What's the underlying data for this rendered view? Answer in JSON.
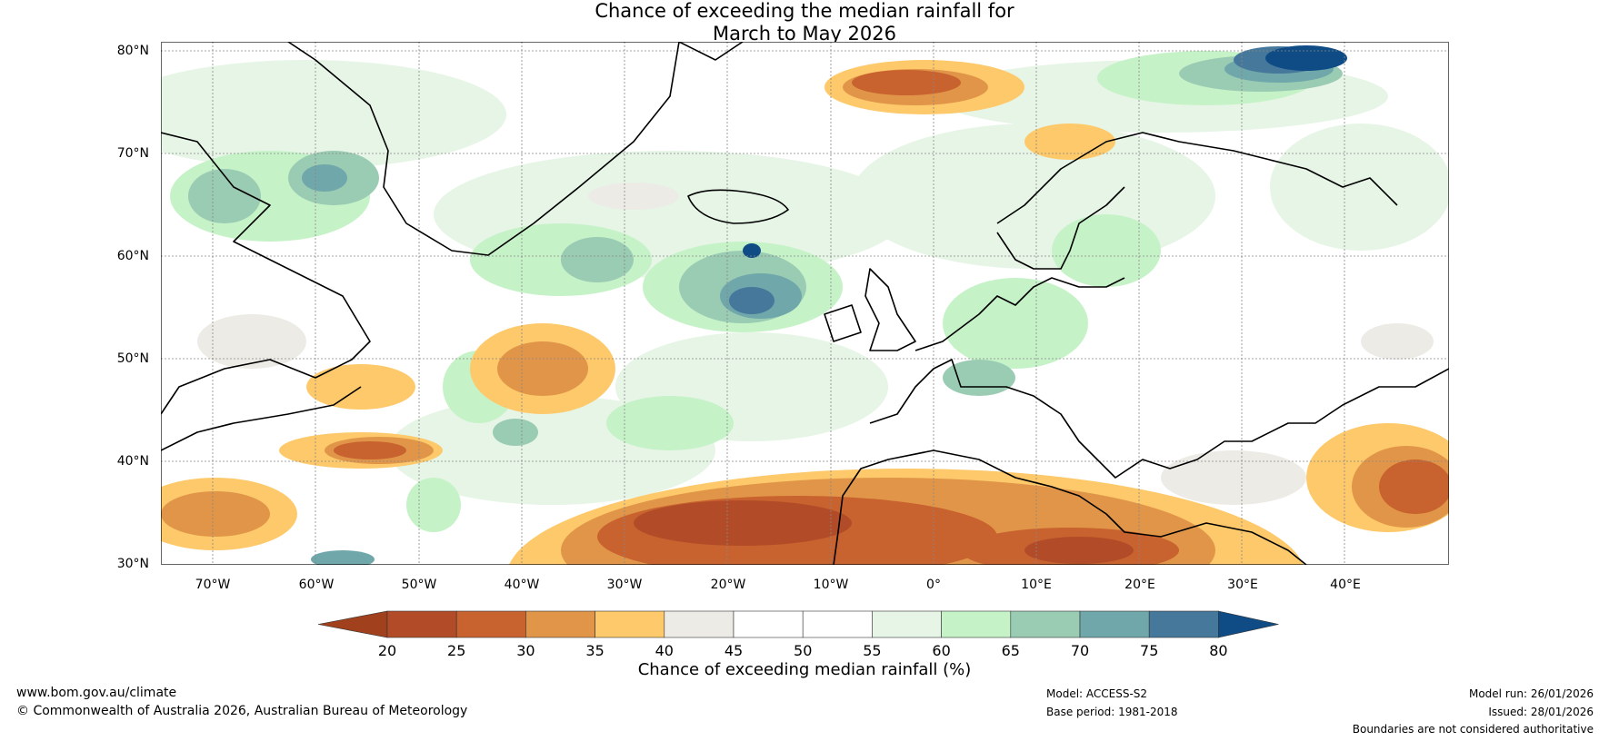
{
  "title_line1": "Chance of exceeding the median rainfall for",
  "title_line2": "March to May 2026",
  "lat_labels": [
    "80°N",
    "70°N",
    "60°N",
    "50°N",
    "40°N",
    "30°N"
  ],
  "lon_labels": [
    "70°W",
    "60°W",
    "50°W",
    "40°W",
    "30°W",
    "20°W",
    "10°W",
    "0°",
    "10°E",
    "20°E",
    "30°E",
    "40°E"
  ],
  "colorbar": {
    "ticks": [
      "20",
      "25",
      "30",
      "35",
      "40",
      "45",
      "50",
      "55",
      "60",
      "65",
      "70",
      "75",
      "80"
    ],
    "colors": [
      "#a0401c",
      "#b24c28",
      "#c8622e",
      "#e19548",
      "#fdc96a",
      "#edebe6",
      "#ffffff",
      "#ffffff",
      "#e6f5e6",
      "#c6f2c8",
      "#9acbb3",
      "#6fa7aa",
      "#45789a",
      "#0f4c86"
    ],
    "label": "Chance of exceeding median rainfall (%)"
  },
  "footer": {
    "website": "www.bom.gov.au/climate",
    "copyright": "© Commonwealth of Australia 2026, Australian Bureau of Meteorology",
    "model": "Model: ACCESS-S2",
    "base_period": "Base period: 1981-2018",
    "model_run": "Model run: 26/01/2026",
    "issued": "Issued: 28/01/2026",
    "disclaimer": "Boundaries are not considered authoritative"
  }
}
